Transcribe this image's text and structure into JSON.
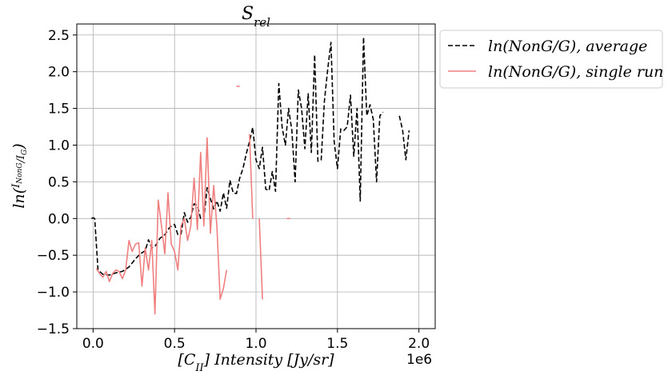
{
  "chart_data": {
    "type": "line",
    "title": "S_rel",
    "xlabel": "[C_II] Intensity [Jy/sr]",
    "ylabel": "ln(I_NonG / I_G)",
    "x_offset_label": "1e6",
    "xlim": [
      -0.1,
      2.1
    ],
    "ylim": [
      -1.5,
      2.65
    ],
    "x_ticks": [
      0.0,
      0.5,
      1.0,
      1.5,
      2.0
    ],
    "x_tick_labels": [
      "0.0",
      "0.5",
      "1.0",
      "1.5",
      "2.0"
    ],
    "y_ticks": [
      -1.5,
      -1.0,
      -0.5,
      0.0,
      0.5,
      1.0,
      1.5,
      2.0,
      2.5
    ],
    "y_tick_labels": [
      "−1.5",
      "−1.0",
      "−0.5",
      "0.0",
      "0.5",
      "1.0",
      "1.5",
      "2.0",
      "2.5"
    ],
    "grid": true,
    "legend_position": "outside-top-right",
    "series": [
      {
        "name": "ln(NonG/G), average",
        "style": "dashed",
        "color": "#000000",
        "segments": [
          [
            [
              -0.01,
              0.0
            ],
            [
              0.0,
              0.01
            ],
            [
              0.01,
              0.0
            ],
            [
              0.03,
              -0.7
            ],
            [
              0.06,
              -0.76
            ],
            [
              0.1,
              -0.77
            ],
            [
              0.14,
              -0.74
            ],
            [
              0.18,
              -0.72
            ],
            [
              0.22,
              -0.66
            ],
            [
              0.26,
              -0.55
            ],
            [
              0.29,
              -0.48
            ],
            [
              0.32,
              -0.44
            ],
            [
              0.34,
              -0.29
            ],
            [
              0.36,
              -0.4
            ],
            [
              0.38,
              -0.38
            ],
            [
              0.41,
              -0.27
            ],
            [
              0.44,
              -0.22
            ],
            [
              0.47,
              -0.12
            ],
            [
              0.5,
              -0.08
            ],
            [
              0.52,
              -0.22
            ],
            [
              0.54,
              -0.21
            ],
            [
              0.56,
              0.08
            ],
            [
              0.58,
              -0.05
            ],
            [
              0.6,
              0.02
            ],
            [
              0.62,
              0.2
            ],
            [
              0.64,
              0.18
            ],
            [
              0.66,
              0.0
            ],
            [
              0.68,
              -0.01
            ],
            [
              0.7,
              0.42
            ],
            [
              0.72,
              0.27
            ],
            [
              0.74,
              0.13
            ],
            [
              0.76,
              0.24
            ],
            [
              0.78,
              0.1
            ],
            [
              0.8,
              0.35
            ],
            [
              0.82,
              0.14
            ],
            [
              0.84,
              0.52
            ],
            [
              0.86,
              0.35
            ],
            [
              0.88,
              0.34
            ],
            [
              0.9,
              0.55
            ],
            [
              0.92,
              0.68
            ],
            [
              0.94,
              0.88
            ],
            [
              0.96,
              1.05
            ],
            [
              0.98,
              1.24
            ],
            [
              1.0,
              0.8
            ],
            [
              1.02,
              0.68
            ],
            [
              1.04,
              0.97
            ],
            [
              1.06,
              0.4
            ],
            [
              1.08,
              0.38
            ],
            [
              1.1,
              0.64
            ],
            [
              1.12,
              0.37
            ],
            [
              1.14,
              1.84
            ],
            [
              1.16,
              1.25
            ],
            [
              1.18,
              1.0
            ],
            [
              1.2,
              1.5
            ],
            [
              1.22,
              1.2
            ],
            [
              1.24,
              0.5
            ],
            [
              1.26,
              1.75
            ],
            [
              1.28,
              1.5
            ],
            [
              1.3,
              0.95
            ],
            [
              1.32,
              1.7
            ],
            [
              1.34,
              0.9
            ],
            [
              1.36,
              2.23
            ],
            [
              1.38,
              0.78
            ],
            [
              1.4,
              0.8
            ],
            [
              1.42,
              1.6
            ],
            [
              1.44,
              2.03
            ],
            [
              1.46,
              2.4
            ],
            [
              1.48,
              1.05
            ],
            [
              1.5,
              0.68
            ],
            [
              1.52,
              1.22
            ],
            [
              1.54,
              1.2
            ],
            [
              1.56,
              1.25
            ],
            [
              1.58,
              1.68
            ],
            [
              1.6,
              0.85
            ],
            [
              1.62,
              1.5
            ],
            [
              1.64,
              0.24
            ],
            [
              1.66,
              2.47
            ],
            [
              1.68,
              1.4
            ],
            [
              1.7,
              1.55
            ],
            [
              1.72,
              1.35
            ],
            [
              1.74,
              0.5
            ],
            [
              1.76,
              1.4
            ],
            [
              1.78,
              1.45
            ]
          ],
          [
            [
              1.88,
              1.4
            ],
            [
              1.9,
              1.2
            ],
            [
              1.92,
              0.8
            ],
            [
              1.94,
              1.2
            ]
          ]
        ]
      },
      {
        "name": "ln(NonG/G), single run",
        "style": "solid",
        "color": "#f08080",
        "segments": [
          [
            [
              0.02,
              -0.68
            ],
            [
              0.04,
              -0.75
            ],
            [
              0.06,
              -0.8
            ],
            [
              0.08,
              -0.72
            ],
            [
              0.1,
              -0.86
            ],
            [
              0.12,
              -0.75
            ],
            [
              0.14,
              -0.7
            ],
            [
              0.16,
              -0.72
            ],
            [
              0.18,
              -0.82
            ],
            [
              0.2,
              -0.7
            ],
            [
              0.22,
              -0.3
            ],
            [
              0.24,
              -0.45
            ],
            [
              0.26,
              -0.35
            ],
            [
              0.28,
              -0.33
            ],
            [
              0.3,
              -0.92
            ],
            [
              0.32,
              -0.4
            ],
            [
              0.34,
              -0.7
            ],
            [
              0.36,
              -0.3
            ],
            [
              0.38,
              -1.3
            ],
            [
              0.4,
              0.25
            ],
            [
              0.42,
              -0.1
            ],
            [
              0.44,
              -0.48
            ],
            [
              0.46,
              0.35
            ],
            [
              0.48,
              -0.35
            ],
            [
              0.5,
              -0.45
            ],
            [
              0.52,
              -0.7
            ],
            [
              0.54,
              -0.1
            ],
            [
              0.56,
              0.0
            ],
            [
              0.58,
              -0.3
            ],
            [
              0.6,
              -0.1
            ],
            [
              0.62,
              0.55
            ],
            [
              0.64,
              -0.15
            ],
            [
              0.66,
              0.9
            ],
            [
              0.68,
              -0.1
            ],
            [
              0.7,
              1.1
            ],
            [
              0.72,
              -0.2
            ],
            [
              0.74,
              0.45
            ],
            [
              0.76,
              -0.1
            ],
            [
              0.78,
              -1.1
            ],
            [
              0.8,
              -0.95
            ],
            [
              0.82,
              -0.7
            ]
          ],
          [
            [
              0.88,
              1.8
            ],
            [
              0.9,
              1.8
            ]
          ],
          [
            [
              0.96,
              1.15
            ],
            [
              0.98,
              0.0
            ]
          ],
          [
            [
              1.02,
              0.0
            ],
            [
              1.04,
              -1.1
            ]
          ],
          [
            [
              1.19,
              0.0
            ],
            [
              1.21,
              0.0
            ]
          ]
        ]
      }
    ]
  }
}
